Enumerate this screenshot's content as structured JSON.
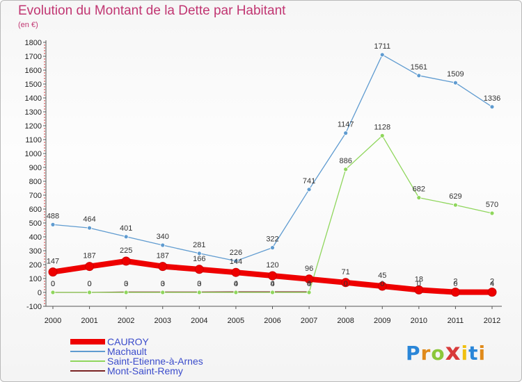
{
  "chart_data": {
    "type": "line",
    "title": "Evolution du Montant de la Dette par Habitant",
    "subtitle": "(en €)",
    "xlabel": "",
    "ylabel": "",
    "ylim": [
      -100,
      1800
    ],
    "yticks": [
      -100,
      0,
      100,
      200,
      300,
      400,
      500,
      600,
      700,
      800,
      900,
      1000,
      1100,
      1200,
      1300,
      1400,
      1500,
      1600,
      1700,
      1800
    ],
    "categories": [
      "2000",
      "2001",
      "2002",
      "2003",
      "2004",
      "2005",
      "2006",
      "2007",
      "2008",
      "2009",
      "2010",
      "2011",
      "2012"
    ],
    "series": [
      {
        "name": "CAUROY",
        "color": "#ee0000",
        "values": [
          147,
          187,
          225,
          187,
          166,
          144,
          120,
          96,
          71,
          45,
          18,
          2,
          2
        ]
      },
      {
        "name": "Machault",
        "color": "#5f9bd0",
        "values": [
          488,
          464,
          401,
          340,
          281,
          226,
          322,
          741,
          1147,
          1711,
          1561,
          1509,
          1336
        ]
      },
      {
        "name": "Saint-Etienne-à-Arnes",
        "color": "#8fd65c",
        "values": [
          0,
          0,
          0,
          0,
          0,
          0,
          0,
          0,
          886,
          1128,
          682,
          629,
          570
        ]
      },
      {
        "name": "Mont-Saint-Remy",
        "color": "#7a2323",
        "values": [
          0,
          0,
          3,
          3,
          3,
          4,
          4,
          4,
          null,
          null,
          null,
          null,
          4
        ]
      }
    ],
    "zero_labels": [
      [
        "0",
        "0",
        "0",
        "0",
        "0",
        "0",
        "0",
        "0",
        "",
        "",
        "",
        "",
        ""
      ],
      [
        "0",
        "0",
        "3",
        "3",
        "3",
        "4",
        "4",
        "4",
        "0",
        "0",
        "0",
        "0",
        "4"
      ]
    ],
    "legend": "bottom-left",
    "grid": false
  },
  "brand": {
    "name": "Proxiti"
  }
}
